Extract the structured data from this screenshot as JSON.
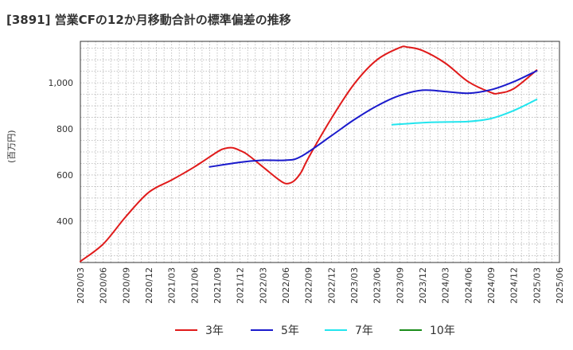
{
  "title": "[3891]  営業CFの12か月移動合計の標準偏差の推移",
  "chart_data": {
    "type": "line",
    "ylabel": "(百万円)",
    "xlabel": "",
    "ylim": [
      220,
      1180
    ],
    "yticks": [
      400,
      600,
      800,
      1000
    ],
    "ytick_labels": [
      "400",
      "600",
      "800",
      "1,000"
    ],
    "x_ticks": [
      "2020/03",
      "2020/06",
      "2020/09",
      "2020/12",
      "2021/03",
      "2021/06",
      "2021/09",
      "2021/12",
      "2022/03",
      "2022/06",
      "2022/09",
      "2022/12",
      "2023/03",
      "2023/06",
      "2023/09",
      "2023/12",
      "2024/03",
      "2024/06",
      "2024/09",
      "2024/12",
      "2025/03",
      "2025/06"
    ],
    "grid": true,
    "legend_position": "bottom",
    "series": [
      {
        "name": "3年",
        "color": "#e01a1a",
        "points": [
          [
            "2020/03",
            225
          ],
          [
            "2020/06",
            300
          ],
          [
            "2020/09",
            420
          ],
          [
            "2020/12",
            525
          ],
          [
            "2021/03",
            578
          ],
          [
            "2021/06",
            635
          ],
          [
            "2021/09",
            700
          ],
          [
            "2021/10",
            715
          ],
          [
            "2021/11",
            718
          ],
          [
            "2021/12",
            706
          ],
          [
            "2022/01",
            688
          ],
          [
            "2022/03",
            635
          ],
          [
            "2022/05",
            582
          ],
          [
            "2022/06",
            563
          ],
          [
            "2022/07",
            572
          ],
          [
            "2022/08",
            610
          ],
          [
            "2022/09",
            675
          ],
          [
            "2022/12",
            845
          ],
          [
            "2023/03",
            995
          ],
          [
            "2023/06",
            1100
          ],
          [
            "2023/09",
            1153
          ],
          [
            "2023/10",
            1155
          ],
          [
            "2023/12",
            1140
          ],
          [
            "2024/03",
            1085
          ],
          [
            "2024/06",
            1005
          ],
          [
            "2024/09",
            958
          ],
          [
            "2024/10",
            955
          ],
          [
            "2024/12",
            975
          ],
          [
            "2025/03",
            1055
          ]
        ]
      },
      {
        "name": "5年",
        "color": "#1a1acc",
        "points": [
          [
            "2021/08",
            635
          ],
          [
            "2021/12",
            655
          ],
          [
            "2022/03",
            664
          ],
          [
            "2022/06",
            664
          ],
          [
            "2022/08",
            680
          ],
          [
            "2022/12",
            770
          ],
          [
            "2023/03",
            840
          ],
          [
            "2023/06",
            900
          ],
          [
            "2023/09",
            945
          ],
          [
            "2023/12",
            968
          ],
          [
            "2024/03",
            962
          ],
          [
            "2024/06",
            955
          ],
          [
            "2024/09",
            970
          ],
          [
            "2024/12",
            1005
          ],
          [
            "2025/03",
            1052
          ]
        ]
      },
      {
        "name": "7年",
        "color": "#22e5ee",
        "points": [
          [
            "2023/08",
            818
          ],
          [
            "2023/12",
            827
          ],
          [
            "2024/03",
            830
          ],
          [
            "2024/06",
            832
          ],
          [
            "2024/09",
            845
          ],
          [
            "2024/12",
            880
          ],
          [
            "2025/03",
            928
          ]
        ]
      },
      {
        "name": "10年",
        "color": "#1a8c1a",
        "points": []
      }
    ]
  }
}
